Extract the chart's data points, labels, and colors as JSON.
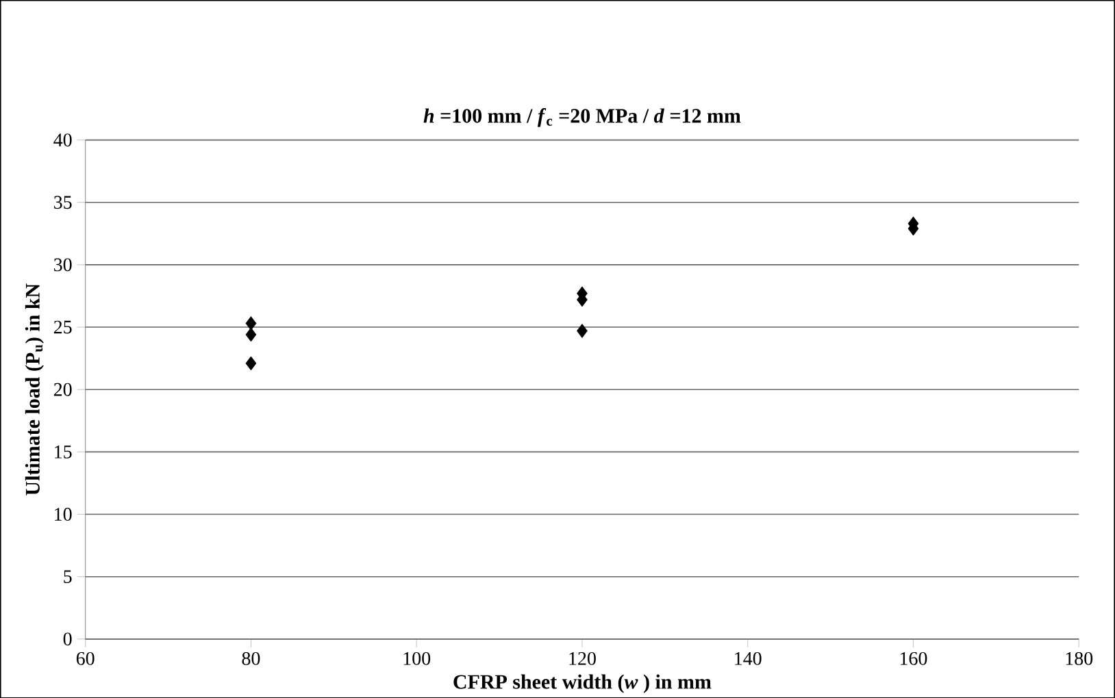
{
  "chart_data": {
    "type": "scatter",
    "title": "*h* =100 mm / *f*$_{c}$ =20 MPa / *d* =12 mm",
    "xlabel": "CFRP sheet width (*w* ) in mm",
    "ylabel": "Ultimate load (P$_{u}$) in kN",
    "x": [
      80,
      80,
      80,
      120,
      120,
      120,
      160,
      160
    ],
    "values": [
      25.3,
      24.4,
      22.1,
      27.7,
      27.2,
      24.7,
      33.3,
      32.9
    ],
    "color": "#000000",
    "marker": "diamond",
    "grid": "y",
    "xlim": [
      60,
      180
    ],
    "xticks": [
      60,
      80,
      100,
      120,
      140,
      160,
      180
    ],
    "ylim": [
      0,
      40
    ],
    "yticks": [
      0,
      5,
      10,
      15,
      20,
      25,
      30,
      35,
      40
    ]
  }
}
